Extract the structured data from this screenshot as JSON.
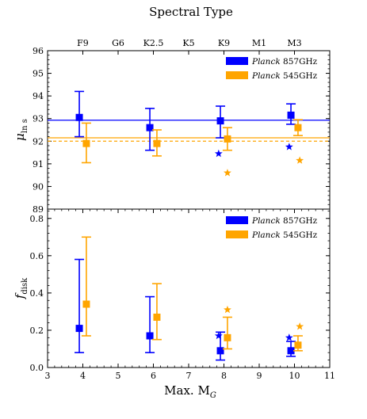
{
  "chart_data": [
    {
      "type": "scatter",
      "top_xlabel": "Spectral Type",
      "top_ticks": [
        {
          "x": 4,
          "label": "F9"
        },
        {
          "x": 5,
          "label": "G6"
        },
        {
          "x": 6,
          "label": "K2.5"
        },
        {
          "x": 7,
          "label": "K5"
        },
        {
          "x": 8,
          "label": "K9"
        },
        {
          "x": 9,
          "label": "M1"
        },
        {
          "x": 10,
          "label": "M3"
        }
      ],
      "ylabel_main": "μ",
      "ylabel_sub": "ln s",
      "ylim": [
        89,
        96
      ],
      "yticks": [
        "89",
        "90",
        "91",
        "92",
        "93",
        "94",
        "95",
        "96"
      ],
      "legend_position": "top-right",
      "series": [
        {
          "name_italic": "Planck",
          "name_rest": "857GHz",
          "color": "#0000ff",
          "points": [
            {
              "x": 3.9,
              "y": 93.05,
              "lo": 92.2,
              "hi": 94.2
            },
            {
              "x": 5.9,
              "y": 92.6,
              "lo": 91.6,
              "hi": 93.45
            },
            {
              "x": 7.9,
              "y": 92.9,
              "lo": 92.15,
              "hi": 93.55
            },
            {
              "x": 9.9,
              "y": 93.15,
              "lo": 92.75,
              "hi": 93.65
            }
          ],
          "stars": [
            {
              "x": 7.85,
              "y": 91.45
            },
            {
              "x": 9.85,
              "y": 91.75
            }
          ],
          "hline": 92.93
        },
        {
          "name_italic": "Planck",
          "name_rest": "545GHz",
          "color": "#ffa500",
          "points": [
            {
              "x": 4.1,
              "y": 91.9,
              "lo": 91.05,
              "hi": 92.8
            },
            {
              "x": 6.1,
              "y": 91.9,
              "lo": 91.35,
              "hi": 92.5
            },
            {
              "x": 8.1,
              "y": 92.1,
              "lo": 91.6,
              "hi": 92.6
            },
            {
              "x": 10.1,
              "y": 92.6,
              "lo": 92.25,
              "hi": 92.95
            }
          ],
          "stars": [
            {
              "x": 8.1,
              "y": 90.6
            },
            {
              "x": 10.15,
              "y": 91.15
            }
          ],
          "hline": 92.15,
          "hline_dashed": 92.0
        }
      ]
    },
    {
      "type": "scatter",
      "xlabel_main": "Max. M",
      "xlabel_sub": "G",
      "xlim": [
        3,
        11
      ],
      "xticks": [
        "3",
        "4",
        "5",
        "6",
        "7",
        "8",
        "9",
        "10",
        "11"
      ],
      "ylabel_main": "f",
      "ylabel_sub": "disk",
      "ylim": [
        0.0,
        0.85
      ],
      "yticks": [
        "0.0",
        "0.2",
        "0.4",
        "0.6",
        "0.8"
      ],
      "legend_position": "top-right",
      "series": [
        {
          "name_italic": "Planck",
          "name_rest": "857GHz",
          "color": "#0000ff",
          "points": [
            {
              "x": 3.9,
              "y": 0.21,
              "lo": 0.08,
              "hi": 0.58
            },
            {
              "x": 5.9,
              "y": 0.17,
              "lo": 0.08,
              "hi": 0.38
            },
            {
              "x": 7.9,
              "y": 0.09,
              "lo": 0.04,
              "hi": 0.19
            },
            {
              "x": 9.9,
              "y": 0.09,
              "lo": 0.06,
              "hi": 0.14
            }
          ],
          "stars": [
            {
              "x": 7.85,
              "y": 0.17
            },
            {
              "x": 9.85,
              "y": 0.16
            }
          ]
        },
        {
          "name_italic": "Planck",
          "name_rest": "545GHz",
          "color": "#ffa500",
          "points": [
            {
              "x": 4.1,
              "y": 0.34,
              "lo": 0.17,
              "hi": 0.7
            },
            {
              "x": 6.1,
              "y": 0.27,
              "lo": 0.15,
              "hi": 0.45
            },
            {
              "x": 8.1,
              "y": 0.16,
              "lo": 0.1,
              "hi": 0.27
            },
            {
              "x": 10.1,
              "y": 0.12,
              "lo": 0.09,
              "hi": 0.17
            }
          ],
          "stars": [
            {
              "x": 8.1,
              "y": 0.31
            },
            {
              "x": 10.15,
              "y": 0.22
            }
          ]
        }
      ]
    }
  ]
}
